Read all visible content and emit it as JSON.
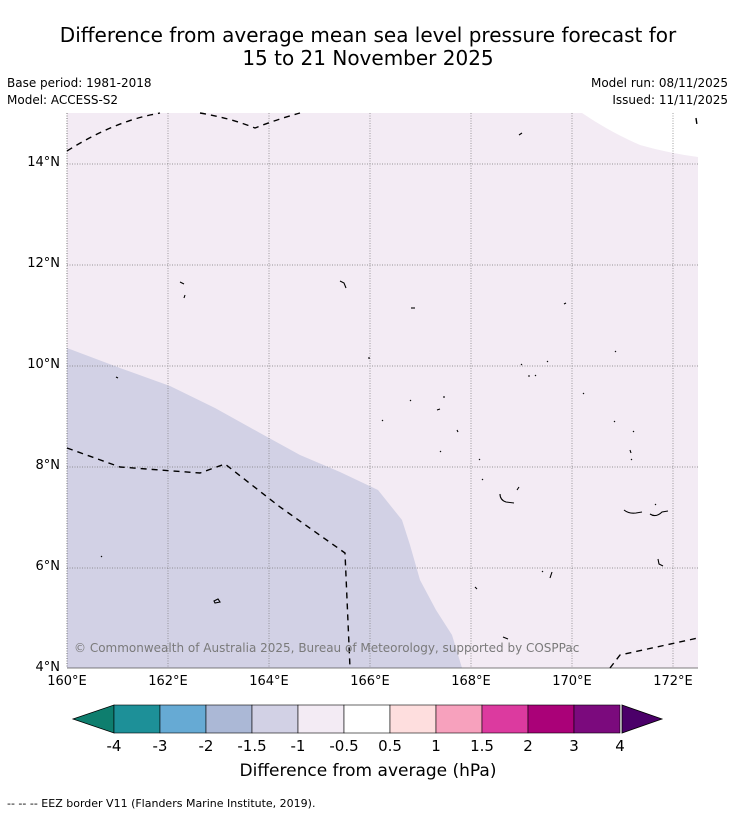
{
  "title_line1": "Difference from average mean sea level pressure forecast for",
  "title_line2": "15 to 21 November 2025",
  "base_period": "Base period: 1981-2018",
  "model": "Model: ACCESS-S2",
  "model_run": "Model run: 08/11/2025",
  "issued": "Issued: 11/11/2025",
  "lat_labels": [
    "14°N",
    "12°N",
    "10°N",
    "8°N",
    "6°N",
    "4°N"
  ],
  "lon_labels": [
    "160°E",
    "162°E",
    "164°E",
    "166°E",
    "168°E",
    "170°E",
    "172°E"
  ],
  "copyright": "© Commonwealth of Australia 2025, Bureau of Meteorology, supported by COSPPac",
  "colorbar": {
    "title": "Difference from average (hPa)",
    "tick_labels": [
      "-4",
      "-3",
      "-2",
      "-1.5",
      "-1",
      "-0.5",
      "0.5",
      "1",
      "1.5",
      "2",
      "3",
      "4"
    ],
    "colors": [
      "#0e7e6e",
      "#1d9098",
      "#66aad4",
      "#abb8d6",
      "#d2d1e5",
      "#f3ebf4",
      "#ffffff",
      "#fedede",
      "#f7a1bd",
      "#dc3a9f",
      "#aa0178",
      "#7b0a7d",
      "#4b0069"
    ]
  },
  "shading": {
    "lower_left_color": "#d2d1e5",
    "lower_left_category": "-1.5 to -1",
    "remainder_color": "#f3ebf4",
    "remainder_category": "-1 to -0.5"
  },
  "legend_text": "-- -- -- EEZ border V11 (Flanders Marine Institute, 2019)."
}
